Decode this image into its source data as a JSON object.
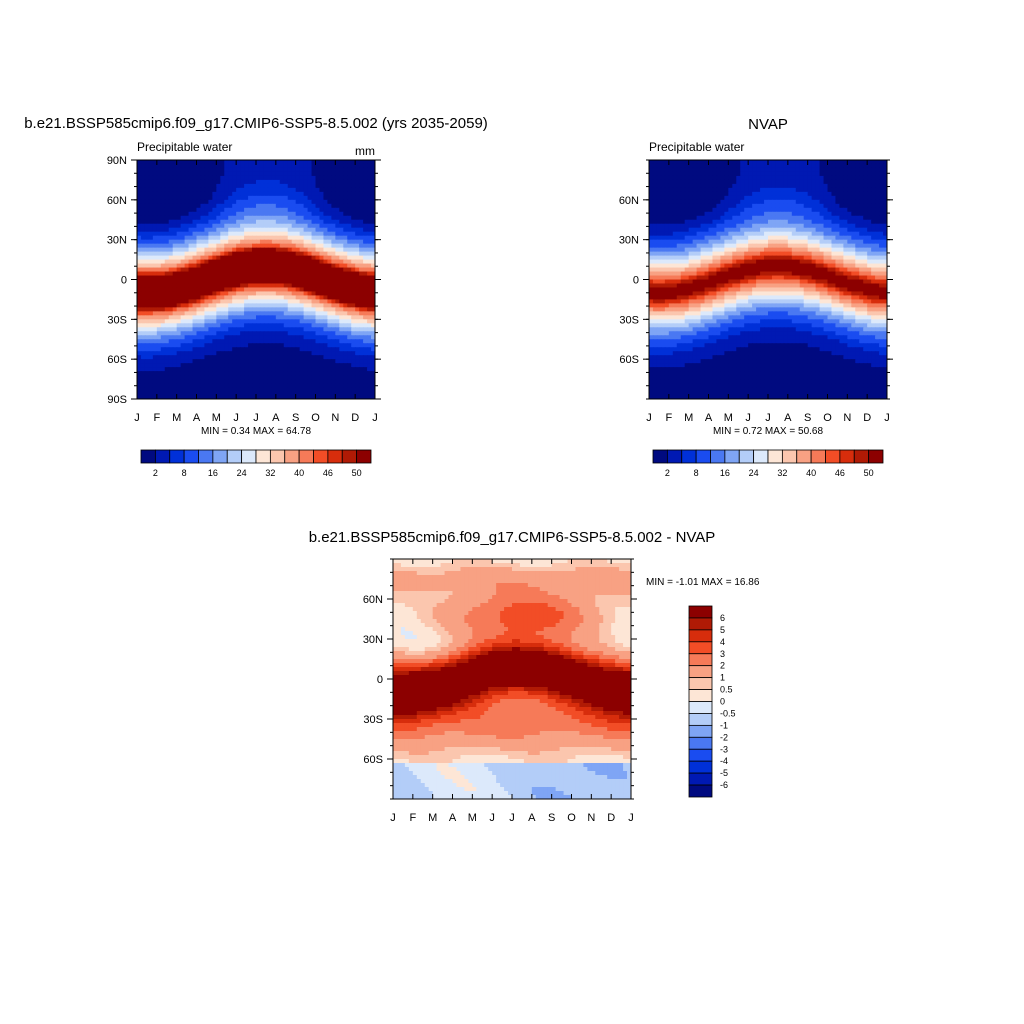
{
  "chart_data": [
    {
      "type": "heatmap",
      "title": "b.e21.BSSP585cmip6.f09_g17.CMIP6-SSP5-8.5.002 (yrs 2035-2059)",
      "left_label": "Precipitable water",
      "right_label": "mm",
      "x_ticks": [
        "J",
        "F",
        "M",
        "A",
        "M",
        "J",
        "J",
        "A",
        "S",
        "O",
        "N",
        "D",
        "J"
      ],
      "y_ticks": [
        "90N",
        "60N",
        "30N",
        "0",
        "30S",
        "60S",
        "90S"
      ],
      "y_tick_values": [
        90,
        60,
        30,
        0,
        -30,
        -60,
        -90
      ],
      "ylim": [
        -90,
        90
      ],
      "min_max_text": "MIN =   0.34 MAX =  64.78",
      "stats": {
        "min": 0.34,
        "max": 64.78
      },
      "colorbar": {
        "levels": [
          2,
          5,
          8,
          12,
          16,
          20,
          24,
          28,
          32,
          36,
          40,
          44,
          46,
          48,
          50
        ],
        "labels": [
          "2",
          "8",
          "16",
          "24",
          "32",
          "40",
          "46",
          "50"
        ],
        "colors": [
          "#000a80",
          "#0019b3",
          "#0030d8",
          "#1a4cf0",
          "#4a78f2",
          "#7fa5f5",
          "#b3cdf8",
          "#dce9fb",
          "#fde6d6",
          "#fbc6ae",
          "#f8a183",
          "#f67a58",
          "#f24d26",
          "#d72d0c",
          "#b01a05",
          "#8c0000"
        ]
      }
    },
    {
      "type": "heatmap",
      "title": "NVAP",
      "left_label": "Precipitable water",
      "x_ticks": [
        "J",
        "F",
        "M",
        "A",
        "M",
        "J",
        "J",
        "A",
        "S",
        "O",
        "N",
        "D",
        "J"
      ],
      "y_ticks": [
        "60N",
        "30N",
        "0",
        "30S",
        "60S"
      ],
      "y_tick_values": [
        60,
        30,
        0,
        -30,
        -60
      ],
      "ylim": [
        -90,
        90
      ],
      "min_max_text": "MIN =   0.72 MAX =  50.68",
      "stats": {
        "min": 0.72,
        "max": 50.68
      },
      "colorbar": {
        "labels": [
          "2",
          "8",
          "16",
          "24",
          "32",
          "40",
          "46",
          "50"
        ]
      }
    },
    {
      "type": "heatmap",
      "title": "b.e21.BSSP585cmip6.f09_g17.CMIP6-SSP5-8.5.002 - NVAP",
      "x_ticks": [
        "J",
        "F",
        "M",
        "A",
        "M",
        "J",
        "J",
        "A",
        "S",
        "O",
        "N",
        "D",
        "J"
      ],
      "y_ticks": [
        "60N",
        "30N",
        "0",
        "30S",
        "60S"
      ],
      "y_tick_values": [
        60,
        30,
        0,
        -30,
        -60
      ],
      "ylim": [
        -90,
        90
      ],
      "min_max_text": "MIN =  -1.01 MAX =  16.86",
      "stats": {
        "min": -1.01,
        "max": 16.86
      },
      "colorbar": {
        "levels": [
          6,
          5,
          4,
          3,
          2,
          1,
          0.5,
          0,
          -0.5,
          -1,
          -2,
          -3,
          -4,
          -5,
          -6
        ],
        "labels": [
          "6",
          "5",
          "4",
          "3",
          "2",
          "1",
          "0.5",
          "0",
          "-0.5",
          "-1",
          "-2",
          "-3",
          "-4",
          "-5",
          "-6"
        ],
        "colors": [
          "#8c0000",
          "#b01a05",
          "#d72d0c",
          "#f24d26",
          "#f67a58",
          "#f8a183",
          "#fbc6ae",
          "#fde6d6",
          "#dce9fb",
          "#b3cdf8",
          "#7fa5f5",
          "#4a78f2",
          "#1a4cf0",
          "#0030d8",
          "#0019b3",
          "#000a80"
        ]
      }
    }
  ]
}
